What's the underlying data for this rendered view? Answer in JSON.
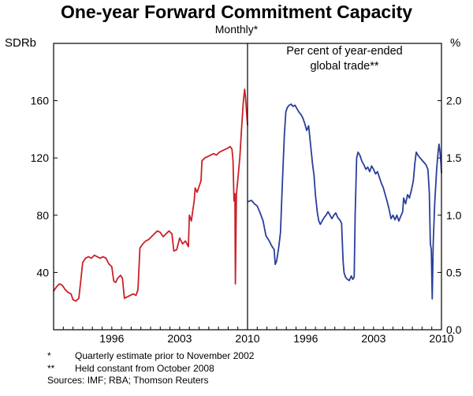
{
  "chart_data": {
    "type": "line",
    "title": "One-year Forward Commitment Capacity",
    "subtitle": "Monthly*",
    "left_axis_unit": "SDRb",
    "right_axis_unit": "%",
    "annotation": "Per cent of year-ended\nglobal trade**",
    "sources": "Sources: IMF; RBA; Thomson Reuters",
    "footnotes": [
      {
        "marker": "*",
        "text": "Quarterly estimate prior to November 2002"
      },
      {
        "marker": "**",
        "text": "Held constant from October 2008"
      }
    ],
    "layout": {
      "grid": false,
      "legend": "none",
      "panel_divider": true
    },
    "panels": [
      {
        "name": "left",
        "ylabel": "SDRb",
        "ylim": [
          0,
          200
        ],
        "ytick_values": [
          40,
          80,
          120,
          160
        ],
        "ytick_labels": [
          "40",
          "80",
          "120",
          "160"
        ],
        "xlim": [
          1990,
          2010
        ],
        "xtick_values": [
          1996,
          2003,
          2010
        ],
        "xtick_labels": [
          "1996",
          "2003",
          "2010"
        ],
        "series": [
          {
            "id": "fcc-sdrb",
            "name": "One-year forward commitment capacity (SDRb)",
            "color": "#cc2027",
            "points": [
              [
                1990.0,
                27
              ],
              [
                1990.3,
                30
              ],
              [
                1990.6,
                32
              ],
              [
                1990.9,
                31
              ],
              [
                1991.2,
                28
              ],
              [
                1991.5,
                26
              ],
              [
                1991.8,
                25
              ],
              [
                1992.0,
                21
              ],
              [
                1992.3,
                20
              ],
              [
                1992.6,
                22
              ],
              [
                1992.8,
                34
              ],
              [
                1993.0,
                47
              ],
              [
                1993.3,
                50
              ],
              [
                1993.6,
                51
              ],
              [
                1993.9,
                50
              ],
              [
                1994.2,
                52
              ],
              [
                1994.5,
                51
              ],
              [
                1994.8,
                50
              ],
              [
                1995.1,
                51
              ],
              [
                1995.4,
                50
              ],
              [
                1995.7,
                46
              ],
              [
                1996.0,
                44
              ],
              [
                1996.2,
                34
              ],
              [
                1996.4,
                33
              ],
              [
                1996.6,
                36
              ],
              [
                1996.9,
                38
              ],
              [
                1997.1,
                36
              ],
              [
                1997.3,
                22
              ],
              [
                1997.6,
                23
              ],
              [
                1997.9,
                24
              ],
              [
                1998.2,
                25
              ],
              [
                1998.5,
                24
              ],
              [
                1998.7,
                28
              ],
              [
                1998.9,
                57
              ],
              [
                1999.2,
                60
              ],
              [
                1999.5,
                62
              ],
              [
                1999.8,
                63
              ],
              [
                2000.1,
                65
              ],
              [
                2000.4,
                67
              ],
              [
                2000.7,
                69
              ],
              [
                2001.0,
                68
              ],
              [
                2001.3,
                65
              ],
              [
                2001.6,
                67
              ],
              [
                2001.9,
                69
              ],
              [
                2002.2,
                67
              ],
              [
                2002.4,
                55
              ],
              [
                2002.7,
                56
              ],
              [
                2003.0,
                64
              ],
              [
                2003.3,
                60
              ],
              [
                2003.6,
                62
              ],
              [
                2003.9,
                58
              ],
              [
                2004.0,
                80
              ],
              [
                2004.2,
                76
              ],
              [
                2004.5,
                90
              ],
              [
                2004.6,
                99
              ],
              [
                2004.8,
                96
              ],
              [
                2005.0,
                100
              ],
              [
                2005.2,
                104
              ],
              [
                2005.3,
                118
              ],
              [
                2005.6,
                120
              ],
              [
                2005.9,
                121
              ],
              [
                2006.2,
                122
              ],
              [
                2006.5,
                123
              ],
              [
                2006.8,
                122
              ],
              [
                2007.1,
                124
              ],
              [
                2007.4,
                125
              ],
              [
                2007.7,
                126
              ],
              [
                2008.0,
                127
              ],
              [
                2008.2,
                128
              ],
              [
                2008.4,
                126
              ],
              [
                2008.5,
                118
              ],
              [
                2008.6,
                90
              ],
              [
                2008.7,
                95
              ],
              [
                2008.75,
                32
              ],
              [
                2008.85,
                95
              ],
              [
                2009.0,
                105
              ],
              [
                2009.2,
                120
              ],
              [
                2009.4,
                142
              ],
              [
                2009.55,
                158
              ],
              [
                2009.7,
                168
              ],
              [
                2009.8,
                162
              ],
              [
                2009.9,
                152
              ],
              [
                2010.0,
                143
              ]
            ]
          }
        ]
      },
      {
        "name": "right",
        "ylabel": "%",
        "ylim": [
          0,
          2.5
        ],
        "ytick_values": [
          0,
          0.5,
          1.0,
          1.5,
          2.0
        ],
        "ytick_labels": [
          "0.0",
          "0.5",
          "1.0",
          "1.5",
          "2.0"
        ],
        "xlim": [
          1990,
          2010
        ],
        "xtick_values": [
          1996,
          2003,
          2010
        ],
        "xtick_labels": [
          "1996",
          "2003",
          "2010"
        ],
        "series": [
          {
            "id": "fcc-share-of-trade",
            "name": "FCC as per cent of year-ended global trade",
            "color": "#2a3f9b",
            "points": [
              [
                1990.1,
                1.12
              ],
              [
                1990.4,
                1.13
              ],
              [
                1990.7,
                1.1
              ],
              [
                1991.0,
                1.08
              ],
              [
                1991.3,
                1.02
              ],
              [
                1991.6,
                0.95
              ],
              [
                1991.9,
                0.82
              ],
              [
                1992.2,
                0.78
              ],
              [
                1992.5,
                0.73
              ],
              [
                1992.75,
                0.7
              ],
              [
                1992.85,
                0.57
              ],
              [
                1993.0,
                0.6
              ],
              [
                1993.2,
                0.71
              ],
              [
                1993.4,
                0.85
              ],
              [
                1993.6,
                1.3
              ],
              [
                1993.8,
                1.7
              ],
              [
                1993.95,
                1.9
              ],
              [
                1994.1,
                1.94
              ],
              [
                1994.3,
                1.96
              ],
              [
                1994.5,
                1.97
              ],
              [
                1994.7,
                1.95
              ],
              [
                1994.9,
                1.96
              ],
              [
                1995.1,
                1.93
              ],
              [
                1995.3,
                1.9
              ],
              [
                1995.5,
                1.88
              ],
              [
                1995.7,
                1.85
              ],
              [
                1995.9,
                1.8
              ],
              [
                1996.1,
                1.74
              ],
              [
                1996.3,
                1.78
              ],
              [
                1996.5,
                1.62
              ],
              [
                1996.7,
                1.45
              ],
              [
                1996.85,
                1.35
              ],
              [
                1997.0,
                1.18
              ],
              [
                1997.2,
                1.02
              ],
              [
                1997.35,
                0.95
              ],
              [
                1997.5,
                0.92
              ],
              [
                1997.7,
                0.95
              ],
              [
                1997.9,
                0.98
              ],
              [
                1998.1,
                1.0
              ],
              [
                1998.3,
                1.03
              ],
              [
                1998.5,
                1.0
              ],
              [
                1998.7,
                0.97
              ],
              [
                1998.9,
                1.0
              ],
              [
                1999.1,
                1.02
              ],
              [
                1999.3,
                0.98
              ],
              [
                1999.5,
                0.96
              ],
              [
                1999.7,
                0.93
              ],
              [
                1999.85,
                0.6
              ],
              [
                1999.95,
                0.5
              ],
              [
                2000.1,
                0.46
              ],
              [
                2000.3,
                0.44
              ],
              [
                2000.5,
                0.43
              ],
              [
                2000.7,
                0.47
              ],
              [
                2000.85,
                0.44
              ],
              [
                2001.0,
                0.46
              ],
              [
                2001.1,
                1.0
              ],
              [
                2001.25,
                1.5
              ],
              [
                2001.4,
                1.55
              ],
              [
                2001.6,
                1.52
              ],
              [
                2001.8,
                1.47
              ],
              [
                2002.0,
                1.44
              ],
              [
                2002.2,
                1.4
              ],
              [
                2002.4,
                1.42
              ],
              [
                2002.6,
                1.38
              ],
              [
                2002.8,
                1.43
              ],
              [
                2003.0,
                1.4
              ],
              [
                2003.2,
                1.36
              ],
              [
                2003.4,
                1.38
              ],
              [
                2003.6,
                1.33
              ],
              [
                2003.8,
                1.28
              ],
              [
                2004.0,
                1.24
              ],
              [
                2004.2,
                1.18
              ],
              [
                2004.4,
                1.12
              ],
              [
                2004.6,
                1.05
              ],
              [
                2004.8,
                0.97
              ],
              [
                2005.0,
                1.0
              ],
              [
                2005.2,
                0.96
              ],
              [
                2005.4,
                1.0
              ],
              [
                2005.6,
                0.95
              ],
              [
                2005.8,
                0.99
              ],
              [
                2006.0,
                1.03
              ],
              [
                2006.1,
                1.15
              ],
              [
                2006.3,
                1.1
              ],
              [
                2006.5,
                1.18
              ],
              [
                2006.7,
                1.15
              ],
              [
                2006.9,
                1.22
              ],
              [
                2007.1,
                1.3
              ],
              [
                2007.25,
                1.45
              ],
              [
                2007.4,
                1.55
              ],
              [
                2007.6,
                1.52
              ],
              [
                2007.8,
                1.5
              ],
              [
                2008.0,
                1.48
              ],
              [
                2008.2,
                1.46
              ],
              [
                2008.4,
                1.44
              ],
              [
                2008.6,
                1.4
              ],
              [
                2008.75,
                1.2
              ],
              [
                2008.85,
                0.75
              ],
              [
                2008.95,
                0.7
              ],
              [
                2009.05,
                0.27
              ],
              [
                2009.15,
                0.75
              ],
              [
                2009.3,
                1.1
              ],
              [
                2009.5,
                1.4
              ],
              [
                2009.65,
                1.55
              ],
              [
                2009.75,
                1.62
              ],
              [
                2009.85,
                1.55
              ],
              [
                2009.95,
                1.45
              ],
              [
                2010.0,
                1.37
              ]
            ]
          }
        ]
      }
    ]
  }
}
